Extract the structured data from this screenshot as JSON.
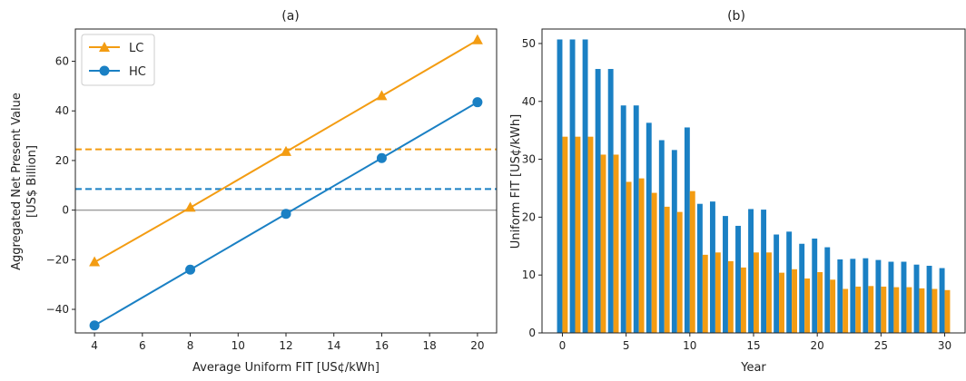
{
  "colors": {
    "LC": "#f39c12",
    "HC": "#1a80c4",
    "zero_line": "#a0a0a0"
  },
  "chart_data": [
    {
      "type": "line",
      "title": "(a)",
      "xlabel": "Average Uniform FIT [US¢/kWh]",
      "ylabel_line1": "Aggregated Net Present Value",
      "ylabel_line2": "[US$ Billion]",
      "x": [
        4,
        8,
        12,
        16,
        20
      ],
      "xlim": [
        3.2,
        20.8
      ],
      "ylim": [
        -49.5,
        73
      ],
      "xticks": [
        4,
        6,
        8,
        10,
        12,
        14,
        16,
        18,
        20
      ],
      "yticks": [
        -40,
        -20,
        0,
        20,
        40,
        60
      ],
      "series": [
        {
          "name": "LC",
          "marker": "triangle",
          "values": [
            -21,
            1,
            23.5,
            46,
            68.5
          ],
          "reference_level": 24.5
        },
        {
          "name": "HC",
          "marker": "circle",
          "values": [
            -46.5,
            -24,
            -1.5,
            21,
            43.5
          ],
          "reference_level": 8.5
        }
      ],
      "zero_line": 0,
      "legend": "top-left",
      "grid": false
    },
    {
      "type": "bar",
      "title": "(b)",
      "xlabel": "Year",
      "ylabel": "Uniform FIT [US¢/kWh]",
      "x": [
        0,
        1,
        2,
        3,
        4,
        5,
        6,
        7,
        8,
        9,
        10,
        11,
        12,
        13,
        14,
        15,
        16,
        17,
        18,
        19,
        20,
        21,
        22,
        23,
        24,
        25,
        26,
        27,
        28,
        29,
        30
      ],
      "xlim": [
        -1.6,
        31.6
      ],
      "ylim": [
        0,
        52.5
      ],
      "xticks": [
        0,
        5,
        10,
        15,
        20,
        25,
        30
      ],
      "yticks": [
        0,
        10,
        20,
        30,
        40,
        50
      ],
      "series": [
        {
          "name": "HC",
          "values": [
            50.7,
            50.7,
            50.7,
            45.6,
            45.6,
            39.3,
            39.3,
            36.3,
            33.3,
            31.6,
            35.5,
            22.3,
            22.7,
            20.2,
            18.5,
            21.4,
            21.3,
            17.0,
            17.5,
            15.4,
            16.3,
            14.8,
            12.7,
            12.8,
            12.9,
            12.6,
            12.3,
            12.3,
            11.8,
            11.6,
            11.2
          ]
        },
        {
          "name": "LC",
          "values": [
            33.9,
            33.9,
            33.9,
            30.8,
            30.8,
            26.1,
            26.7,
            24.2,
            21.8,
            20.9,
            24.5,
            13.5,
            13.9,
            12.4,
            11.3,
            13.9,
            13.9,
            10.4,
            11.0,
            9.4,
            10.5,
            9.2,
            7.6,
            8.0,
            8.1,
            8.0,
            7.9,
            7.9,
            7.7,
            7.6,
            7.4
          ]
        }
      ],
      "grid": false
    }
  ]
}
